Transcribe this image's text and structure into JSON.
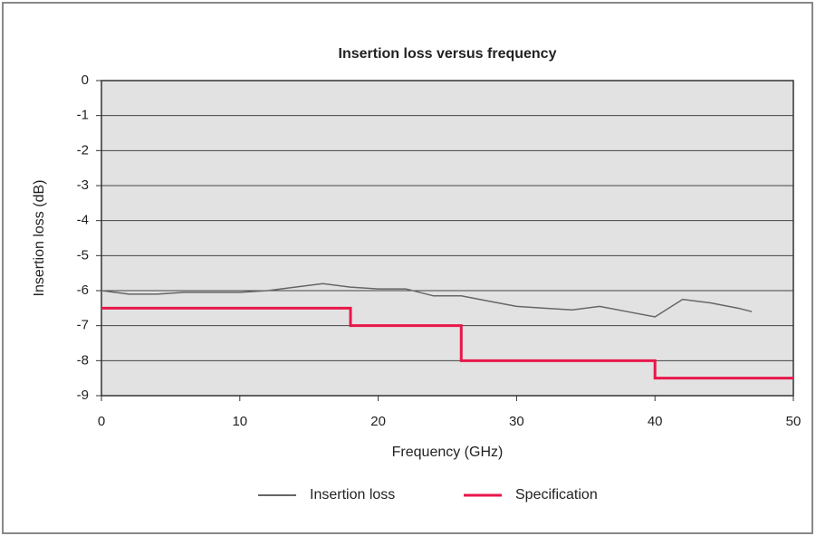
{
  "chart_data": {
    "type": "line",
    "title": "Insertion loss versus frequency",
    "xlabel": "Frequency (GHz)",
    "ylabel": "Insertion loss (dB)",
    "xlim": [
      0,
      50
    ],
    "xticks": [
      0,
      10,
      20,
      30,
      40,
      50
    ],
    "ylim": [
      -9,
      0
    ],
    "yticks": [
      0,
      -1,
      -2,
      -3,
      -4,
      -5,
      -6,
      -7,
      -8,
      -9
    ],
    "grid": true,
    "legend": "bottom",
    "series": [
      {
        "name": "Insertion loss",
        "color": "#666666",
        "x": [
          0,
          2,
          4,
          6,
          8,
          10,
          12,
          14,
          16,
          18,
          20,
          22,
          24,
          26,
          28,
          30,
          32,
          34,
          36,
          38,
          40,
          42,
          44,
          46,
          47
        ],
        "values": [
          -6.0,
          -6.1,
          -6.1,
          -6.05,
          -6.05,
          -6.05,
          -6.0,
          -5.9,
          -5.8,
          -5.9,
          -5.95,
          -5.95,
          -6.15,
          -6.15,
          -6.3,
          -6.45,
          -6.5,
          -6.55,
          -6.45,
          -6.6,
          -6.75,
          -6.25,
          -6.35,
          -6.5,
          -6.6
        ]
      },
      {
        "name": "Specification",
        "color": "#e8174a",
        "x": [
          0,
          18,
          18,
          26,
          26,
          40,
          40,
          50
        ],
        "values": [
          -6.5,
          -6.5,
          -7,
          -7,
          -8,
          -8,
          -8.5,
          -8.5
        ]
      }
    ]
  }
}
